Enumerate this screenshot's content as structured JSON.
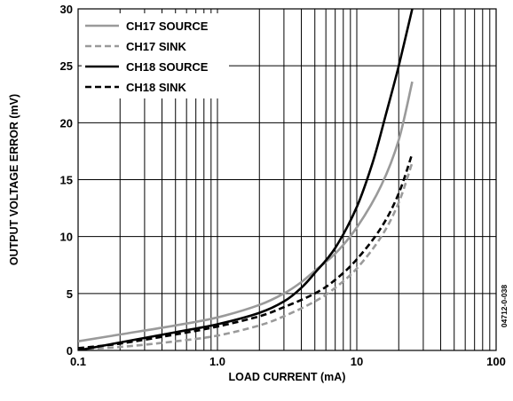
{
  "chart_data": {
    "type": "line",
    "xlabel": "LOAD CURRENT (mA)",
    "ylabel": "OUTPUT VOLTAGE ERROR (mV)",
    "x_scale": "log",
    "xlim": [
      0.1,
      100
    ],
    "ylim": [
      0,
      30
    ],
    "x_ticks": [
      {
        "value": 0.1,
        "label": "0.1"
      },
      {
        "value": 1,
        "label": "1.0"
      },
      {
        "value": 10,
        "label": "10"
      },
      {
        "value": 100,
        "label": "100"
      }
    ],
    "y_ticks": [
      {
        "value": 0,
        "label": "0"
      },
      {
        "value": 5,
        "label": "5"
      },
      {
        "value": 10,
        "label": "10"
      },
      {
        "value": 15,
        "label": "15"
      },
      {
        "value": 20,
        "label": "20"
      },
      {
        "value": 25,
        "label": "25"
      },
      {
        "value": 30,
        "label": "30"
      }
    ],
    "grid": true,
    "legend_position": "top-left",
    "series": [
      {
        "name": "CH17 SOURCE",
        "color": "#9a9a9a",
        "dash": "solid",
        "x": [
          0.1,
          0.2,
          0.5,
          1,
          2,
          3,
          4,
          5,
          7,
          10,
          15,
          20,
          25
        ],
        "y": [
          0.8,
          1.4,
          2.2,
          2.9,
          4.0,
          5.0,
          6.0,
          7.0,
          8.5,
          10.8,
          14.5,
          18.5,
          23.6
        ]
      },
      {
        "name": "CH17 SINK",
        "color": "#9a9a9a",
        "dash": "dashed",
        "x": [
          0.1,
          0.2,
          0.5,
          1,
          2,
          3,
          5,
          7,
          10,
          15,
          20,
          25
        ],
        "y": [
          0.1,
          0.3,
          0.8,
          1.3,
          2.2,
          3.0,
          4.3,
          5.5,
          7.2,
          10.0,
          13.0,
          16.5
        ]
      },
      {
        "name": "CH18 SOURCE",
        "color": "#000000",
        "dash": "solid",
        "x": [
          0.1,
          0.2,
          0.5,
          1,
          2,
          3,
          4,
          5,
          7,
          10,
          13,
          16,
          20,
          25
        ],
        "y": [
          0.0,
          0.7,
          1.6,
          2.3,
          3.3,
          4.3,
          5.5,
          6.8,
          9.0,
          12.6,
          16.5,
          20.5,
          25.0,
          30.0
        ]
      },
      {
        "name": "CH18 SINK",
        "color": "#000000",
        "dash": "dashed",
        "x": [
          0.1,
          0.2,
          0.5,
          1,
          2,
          3,
          5,
          7,
          10,
          15,
          20,
          25
        ],
        "y": [
          0.2,
          0.6,
          1.4,
          2.1,
          3.0,
          3.8,
          5.0,
          6.2,
          8.0,
          10.8,
          13.8,
          17.3
        ]
      }
    ],
    "annotation": "04712-0-038"
  }
}
